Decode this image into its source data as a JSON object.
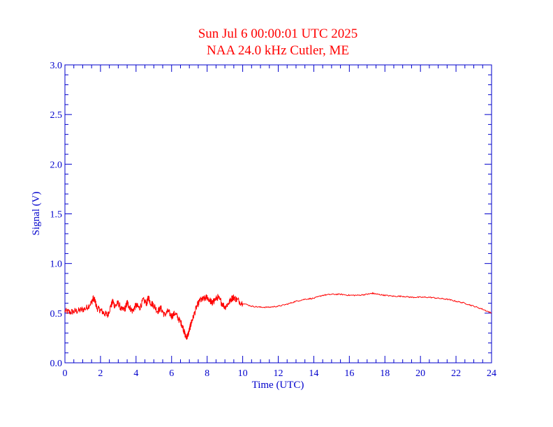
{
  "colors": {
    "axis": "#0000cc",
    "series": "#ff0000",
    "title": "#ff0000",
    "background": "#ffffff"
  },
  "chart_data": {
    "type": "line",
    "title": "Sun Jul 6 00:00:01 UTC 2025",
    "subtitle": "NAA 24.0 kHz Cutler, ME",
    "xlabel": "Time (UTC)",
    "ylabel": "Signal (V)",
    "xlim": [
      0,
      24
    ],
    "ylim": [
      0.0,
      3.0
    ],
    "x_ticks": [
      "0",
      "2",
      "4",
      "6",
      "8",
      "10",
      "12",
      "14",
      "16",
      "18",
      "20",
      "22",
      "24"
    ],
    "y_ticks": [
      "0.0",
      "0.5",
      "1.0",
      "1.5",
      "2.0",
      "2.5",
      "3.0"
    ],
    "grid": false,
    "series": [
      {
        "x": [
          0.0,
          0.3,
          0.6,
          0.9,
          1.2,
          1.5,
          1.6,
          1.7,
          1.8,
          2.0,
          2.2,
          2.4,
          2.6,
          2.7,
          2.8,
          3.0,
          3.2,
          3.4,
          3.5,
          3.6,
          3.8,
          4.0,
          4.2,
          4.4,
          4.6,
          4.7,
          4.8,
          5.0,
          5.2,
          5.4,
          5.6,
          5.8,
          6.0,
          6.2,
          6.4,
          6.6,
          6.7,
          6.8,
          6.9,
          7.0,
          7.1,
          7.2,
          7.4,
          7.6,
          7.8,
          8.0,
          8.2,
          8.3,
          8.4,
          8.6,
          8.8,
          9.0,
          9.2,
          9.4,
          9.5,
          9.7,
          10.0,
          10.5,
          11.0,
          11.5,
          12.0,
          12.5,
          13.0,
          13.5,
          14.0,
          14.5,
          15.0,
          15.5,
          16.0,
          16.5,
          17.0,
          17.3,
          17.6,
          18.0,
          18.5,
          19.0,
          19.5,
          20.0,
          20.5,
          21.0,
          21.5,
          22.0,
          22.5,
          23.0,
          23.5,
          24.0
        ],
        "values": [
          0.52,
          0.51,
          0.52,
          0.53,
          0.55,
          0.61,
          0.65,
          0.62,
          0.55,
          0.53,
          0.5,
          0.48,
          0.58,
          0.62,
          0.57,
          0.6,
          0.53,
          0.55,
          0.61,
          0.57,
          0.52,
          0.58,
          0.55,
          0.63,
          0.6,
          0.66,
          0.61,
          0.58,
          0.52,
          0.55,
          0.48,
          0.52,
          0.47,
          0.5,
          0.44,
          0.38,
          0.32,
          0.26,
          0.27,
          0.33,
          0.4,
          0.45,
          0.56,
          0.63,
          0.64,
          0.66,
          0.62,
          0.6,
          0.63,
          0.66,
          0.61,
          0.56,
          0.6,
          0.65,
          0.66,
          0.63,
          0.6,
          0.57,
          0.56,
          0.56,
          0.57,
          0.59,
          0.62,
          0.64,
          0.65,
          0.68,
          0.69,
          0.69,
          0.68,
          0.68,
          0.69,
          0.7,
          0.69,
          0.68,
          0.67,
          0.67,
          0.66,
          0.66,
          0.66,
          0.65,
          0.64,
          0.62,
          0.6,
          0.57,
          0.54,
          0.5
        ]
      }
    ]
  }
}
